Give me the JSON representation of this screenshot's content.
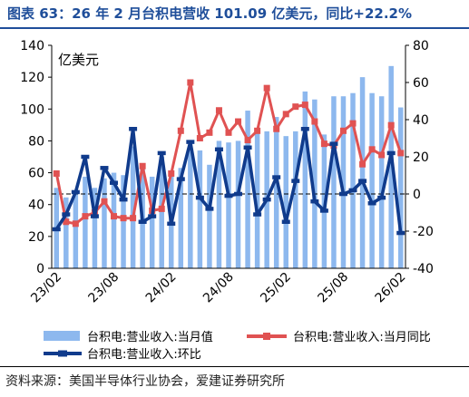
{
  "title": "图表 63：26 年 2 月台积电营收 101.09 亿美元，同比+22.2%",
  "source": "资料来源：美国半导体行业协会，爱建证券研究所",
  "chart_data": {
    "type": "bar",
    "unit_label": "亿美元",
    "x": [
      "23/02",
      "23/03",
      "23/04",
      "23/05",
      "23/06",
      "23/07",
      "23/08",
      "23/09",
      "23/10",
      "23/11",
      "23/12",
      "24/01",
      "24/02",
      "24/03",
      "24/04",
      "24/05",
      "24/06",
      "24/07",
      "24/08",
      "24/09",
      "24/10",
      "24/11",
      "24/12",
      "25/01",
      "25/02",
      "25/03",
      "25/04",
      "25/05",
      "25/06",
      "25/07",
      "25/08",
      "25/09",
      "25/10",
      "25/11",
      "25/12",
      "26/01",
      "26/02"
    ],
    "xtick_labels": [
      "23/02",
      "23/08",
      "24/02",
      "24/08",
      "25/02",
      "25/08",
      "26/02"
    ],
    "y_left_ticks": [
      0,
      20,
      40,
      60,
      80,
      100,
      120,
      140
    ],
    "y_right_ticks": [
      -40,
      -20,
      0,
      20,
      40,
      60,
      80
    ],
    "ylim_left": [
      0,
      140
    ],
    "ylim_right": [
      -40,
      80
    ],
    "series": [
      {
        "name": "台积电:营业收入:当月值",
        "type": "bar",
        "axis": "left",
        "color": "#8db8ee",
        "values": [
          50.5,
          44.5,
          47.8,
          57.5,
          50.5,
          56.5,
          60,
          58.5,
          76.5,
          65,
          57.5,
          70,
          58,
          63,
          75,
          74,
          65,
          80,
          79,
          80,
          99,
          88,
          86,
          95,
          83,
          86,
          111,
          106,
          84,
          108,
          108,
          110,
          120,
          110,
          108,
          127,
          101
        ]
      },
      {
        "name": "台积电:营业收入:当月同比",
        "type": "line",
        "axis": "right",
        "color": "#e05252",
        "values": [
          11,
          -15,
          -16,
          -12,
          -10,
          -4,
          -12,
          -13,
          -13,
          15,
          -9,
          -8,
          11,
          34,
          60,
          30,
          33,
          45,
          33,
          39,
          29,
          34,
          57,
          35,
          43,
          47,
          48,
          39,
          27,
          26,
          34,
          38,
          16,
          24,
          21,
          37,
          22
        ]
      },
      {
        "name": "台积电:营业收入:环比",
        "type": "line",
        "axis": "right",
        "color": "#103b8c",
        "values": [
          -19,
          -11,
          1,
          20,
          -12,
          14,
          6,
          -3,
          35,
          -15,
          -12,
          22,
          -16,
          8,
          28,
          -2,
          -8,
          24,
          -1,
          0,
          25,
          -11,
          -3,
          9,
          -15,
          7,
          35,
          -4,
          -9,
          27,
          0,
          2,
          7,
          -5,
          -2,
          22,
          -21
        ]
      }
    ],
    "legend": "bottom",
    "grid": false,
    "zero_line_style": "dashed"
  }
}
